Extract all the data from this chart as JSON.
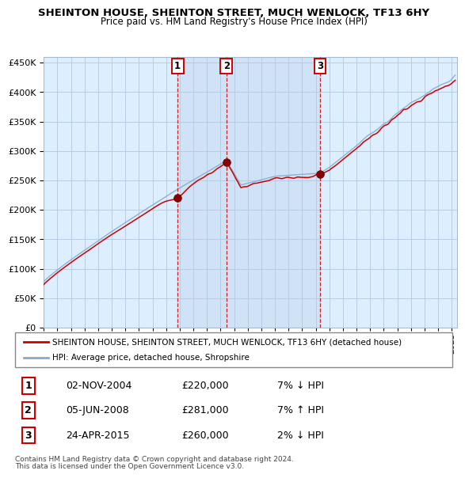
{
  "title": "SHEINTON HOUSE, SHEINTON STREET, MUCH WENLOCK, TF13 6HY",
  "subtitle": "Price paid vs. HM Land Registry's House Price Index (HPI)",
  "legend_line1": "SHEINTON HOUSE, SHEINTON STREET, MUCH WENLOCK, TF13 6HY (detached house)",
  "legend_line2": "HPI: Average price, detached house, Shropshire",
  "transactions": [
    {
      "num": 1,
      "date": "02-NOV-2004",
      "year": 2004.84,
      "price": 220000,
      "note": "7% ↓ HPI"
    },
    {
      "num": 2,
      "date": "05-JUN-2008",
      "year": 2008.43,
      "price": 281000,
      "note": "7% ↑ HPI"
    },
    {
      "num": 3,
      "date": "24-APR-2015",
      "year": 2015.31,
      "price": 260000,
      "note": "2% ↓ HPI"
    }
  ],
  "footer1": "Contains HM Land Registry data © Crown copyright and database right 2024.",
  "footer2": "This data is licensed under the Open Government Licence v3.0.",
  "plot_bg": "#ddeeff",
  "red_line_color": "#cc0000",
  "blue_line_color": "#88aacc",
  "ylim": [
    0,
    460000
  ],
  "xlim_start": 1995.0,
  "xlim_end": 2025.4
}
